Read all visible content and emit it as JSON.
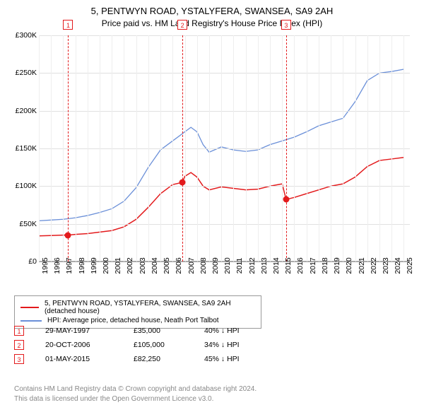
{
  "title": "5, PENTWYN ROAD, YSTALYFERA, SWANSEA, SA9 2AH",
  "subtitle": "Price paid vs. HM Land Registry's House Price Index (HPI)",
  "chart": {
    "type": "line",
    "background_color": "#ffffff",
    "grid_color": "#e0e0e0",
    "grid_color_v": "#eeeeee",
    "axis_color": "#aaaaaa",
    "x": {
      "min": 1995,
      "max": 2025.5,
      "ticks": [
        1995,
        1996,
        1997,
        1998,
        1999,
        2000,
        2001,
        2002,
        2003,
        2004,
        2005,
        2006,
        2007,
        2008,
        2009,
        2010,
        2011,
        2012,
        2013,
        2014,
        2015,
        2016,
        2017,
        2018,
        2019,
        2020,
        2021,
        2022,
        2023,
        2024,
        2025
      ]
    },
    "y": {
      "min": 0,
      "max": 300000,
      "ticks": [
        0,
        50000,
        100000,
        150000,
        200000,
        250000,
        300000
      ],
      "labels": [
        "£0",
        "£50K",
        "£100K",
        "£150K",
        "£200K",
        "£250K",
        "£300K"
      ]
    },
    "label_fontsize": 10.5,
    "title_fontsize": 13,
    "series": [
      {
        "name": "price_paid",
        "color": "#e31a1c",
        "width": 1.5,
        "legend": "5, PENTWYN ROAD, YSTALYFERA, SWANSEA, SA9 2AH (detached house)",
        "points": [
          [
            1995,
            34000
          ],
          [
            1996,
            34500
          ],
          [
            1997,
            35000
          ],
          [
            1997.41,
            35000
          ],
          [
            1998,
            36000
          ],
          [
            1999,
            37000
          ],
          [
            2000,
            39000
          ],
          [
            2001,
            41000
          ],
          [
            2002,
            46000
          ],
          [
            2003,
            56000
          ],
          [
            2004,
            72000
          ],
          [
            2005,
            90000
          ],
          [
            2006,
            102000
          ],
          [
            2006.8,
            105000
          ],
          [
            2007,
            113000
          ],
          [
            2007.5,
            118000
          ],
          [
            2008,
            112000
          ],
          [
            2008.5,
            100000
          ],
          [
            2009,
            95000
          ],
          [
            2010,
            99000
          ],
          [
            2011,
            97000
          ],
          [
            2012,
            95000
          ],
          [
            2013,
            96000
          ],
          [
            2014,
            100000
          ],
          [
            2015,
            103000
          ],
          [
            2015.33,
            82250
          ],
          [
            2016,
            85000
          ],
          [
            2017,
            90000
          ],
          [
            2018,
            95000
          ],
          [
            2019,
            100000
          ],
          [
            2020,
            103000
          ],
          [
            2021,
            112000
          ],
          [
            2022,
            126000
          ],
          [
            2023,
            134000
          ],
          [
            2024,
            136000
          ],
          [
            2025,
            138000
          ]
        ]
      },
      {
        "name": "hpi",
        "color": "#6a8fd8",
        "width": 1.3,
        "legend": "HPI: Average price, detached house, Neath Port Talbot",
        "points": [
          [
            1995,
            54000
          ],
          [
            1996,
            55000
          ],
          [
            1997,
            56000
          ],
          [
            1998,
            58000
          ],
          [
            1999,
            61000
          ],
          [
            2000,
            65000
          ],
          [
            2001,
            70000
          ],
          [
            2002,
            80000
          ],
          [
            2003,
            98000
          ],
          [
            2004,
            125000
          ],
          [
            2005,
            148000
          ],
          [
            2006,
            160000
          ],
          [
            2007,
            172000
          ],
          [
            2007.5,
            178000
          ],
          [
            2008,
            172000
          ],
          [
            2008.5,
            155000
          ],
          [
            2009,
            145000
          ],
          [
            2010,
            152000
          ],
          [
            2011,
            148000
          ],
          [
            2012,
            146000
          ],
          [
            2013,
            148000
          ],
          [
            2014,
            155000
          ],
          [
            2015,
            160000
          ],
          [
            2016,
            165000
          ],
          [
            2017,
            172000
          ],
          [
            2018,
            180000
          ],
          [
            2019,
            185000
          ],
          [
            2020,
            190000
          ],
          [
            2021,
            212000
          ],
          [
            2022,
            240000
          ],
          [
            2023,
            250000
          ],
          [
            2024,
            252000
          ],
          [
            2025,
            255000
          ]
        ]
      }
    ],
    "markers": [
      {
        "n": "1",
        "x": 1997.41,
        "y": 35000,
        "date": "29-MAY-1997",
        "price": "£35,000",
        "note": "40% ↓ HPI",
        "color": "#e31a1c"
      },
      {
        "n": "2",
        "x": 2006.8,
        "y": 105000,
        "date": "20-OCT-2006",
        "price": "£105,000",
        "note": "34% ↓ HPI",
        "color": "#e31a1c"
      },
      {
        "n": "3",
        "x": 2015.33,
        "y": 82250,
        "date": "01-MAY-2015",
        "price": "£82,250",
        "note": "45% ↓ HPI",
        "color": "#e31a1c"
      }
    ]
  },
  "legend": {
    "items": [
      {
        "color": "#e31a1c",
        "label": "5, PENTWYN ROAD, YSTALYFERA, SWANSEA, SA9 2AH (detached house)"
      },
      {
        "color": "#6a8fd8",
        "label": "HPI: Average price, detached house, Neath Port Talbot"
      }
    ]
  },
  "footer": {
    "line1": "Contains HM Land Registry data © Crown copyright and database right 2024.",
    "line2": "This data is licensed under the Open Government Licence v3.0."
  }
}
